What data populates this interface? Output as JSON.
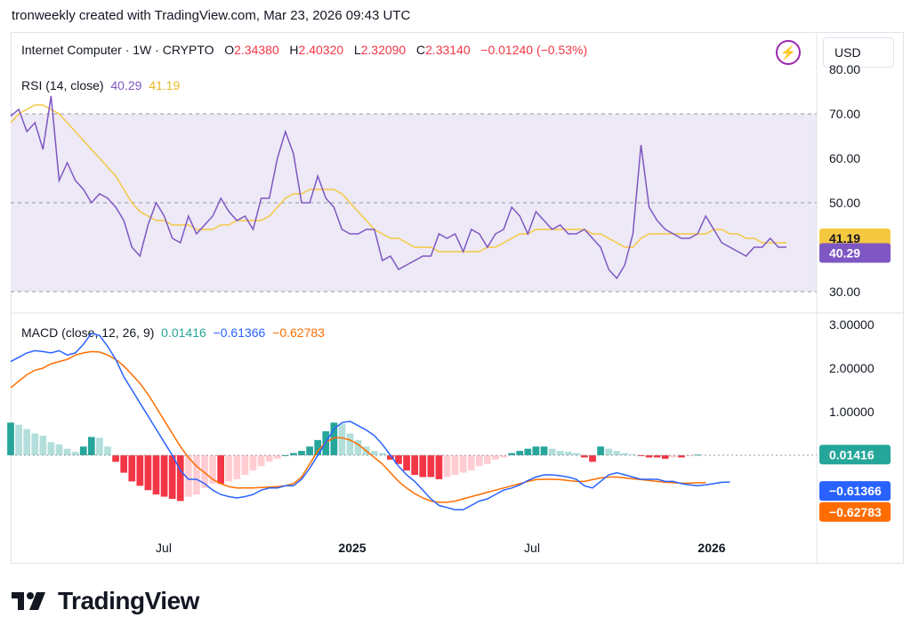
{
  "caption": "tronweekly created with TradingView.com, Mar 23, 2026 09:43 UTC",
  "header": {
    "symbol": "Internet Computer · 1W · CRYPTO",
    "o_label": "O",
    "o_value": "2.34380",
    "h_label": "H",
    "h_value": "2.40320",
    "l_label": "L",
    "l_value": "2.32090",
    "c_label": "C",
    "c_value": "2.33140",
    "change": "−0.01240 (−0.53%)",
    "currency": "USD"
  },
  "colors": {
    "rsi": "#7e57c2",
    "rsi_ma": "#f5c842",
    "macd": "#2962ff",
    "signal": "#ff6d00",
    "hist_pos": "#26a69a",
    "hist_pos_light": "#b2dfdb",
    "hist_neg": "#f23645",
    "hist_neg_light": "#ffcdd2",
    "macd_val": "#26a69a"
  },
  "icons": {
    "flash": "flash-icon",
    "logo": "tradingview-logo-icon"
  },
  "rsi_legend": {
    "label": "RSI (14, close)",
    "value": "40.29",
    "ma_value": "41.19"
  },
  "macd_legend": {
    "label": "MACD (close, 12, 26, 9)",
    "hist": "0.01416",
    "macd": "−0.61366",
    "signal": "−0.62783"
  },
  "footer": {
    "brand": "TradingView"
  },
  "chart_data": [
    {
      "type": "line",
      "title": "RSI (14, close)",
      "ylim": [
        30,
        80
      ],
      "y_ticks": [
        "30.00",
        "50.00",
        "60.00",
        "70.00",
        "80.00"
      ],
      "levels": [
        30,
        50,
        70
      ],
      "x_ticks": [
        "Jul",
        "2025",
        "Jul",
        "2026"
      ],
      "series": [
        {
          "name": "RSI",
          "values": [
            69.5,
            71,
            66,
            68,
            62,
            74,
            55,
            59,
            55,
            53,
            50,
            52,
            51,
            49,
            46,
            40,
            38,
            45,
            50,
            47,
            42,
            41,
            47,
            43,
            45,
            47,
            51,
            48,
            46,
            47,
            44,
            51,
            51,
            60,
            66,
            61,
            50,
            50,
            56,
            51,
            49,
            44,
            43,
            43,
            44,
            44,
            37,
            38,
            35,
            36,
            37,
            38,
            38,
            43,
            42,
            43,
            39,
            44,
            43,
            40,
            43,
            44,
            49,
            47,
            43,
            48,
            46,
            44,
            45,
            43,
            43,
            44,
            42,
            40,
            35,
            33,
            36,
            43,
            63,
            49,
            46,
            44,
            43,
            42,
            42,
            43,
            47,
            44,
            41,
            40,
            39,
            38,
            40,
            40,
            42,
            40,
            40
          ],
          "last_label": "40.29"
        },
        {
          "name": "RSI-based MA",
          "values": [
            68,
            70,
            71,
            72,
            72,
            71,
            70,
            68,
            66,
            64,
            62,
            60,
            58,
            56,
            53,
            50,
            48,
            47,
            46,
            46,
            45,
            45,
            45,
            44,
            44,
            44,
            45,
            45,
            46,
            46,
            46,
            46,
            47,
            49,
            51,
            52,
            52,
            53,
            53,
            53,
            53,
            52,
            50,
            48,
            46,
            44,
            43,
            42,
            42,
            41,
            40,
            40,
            40,
            39,
            39,
            39,
            39,
            39,
            39,
            40,
            40,
            41,
            42,
            43,
            43,
            44,
            44,
            44,
            44,
            44,
            44,
            44,
            43,
            43,
            42,
            41,
            40,
            40,
            42,
            43,
            43,
            43,
            43,
            43,
            43,
            43,
            43,
            44,
            44,
            43,
            43,
            42,
            42,
            41,
            41,
            41,
            41
          ],
          "last_label": "41.19"
        }
      ]
    },
    {
      "type": "line",
      "title": "MACD (close, 12, 26, 9)",
      "ylim": [
        -1.8,
        3.0
      ],
      "y_ticks": [
        "1.00000",
        "2.00000",
        "3.00000"
      ],
      "x_ticks": [
        "Jul",
        "2025",
        "Jul",
        "2026"
      ],
      "series": [
        {
          "name": "MACD",
          "values": [
            2.15,
            2.25,
            2.35,
            2.4,
            2.38,
            2.35,
            2.4,
            2.3,
            2.35,
            2.55,
            2.8,
            2.75,
            2.5,
            2.2,
            1.8,
            1.5,
            1.2,
            0.9,
            0.6,
            0.3,
            0.0,
            -0.35,
            -0.55,
            -0.55,
            -0.65,
            -0.8,
            -0.9,
            -0.95,
            -0.98,
            -0.95,
            -0.9,
            -0.8,
            -0.75,
            -0.75,
            -0.7,
            -0.7,
            -0.55,
            -0.3,
            0.0,
            0.3,
            0.6,
            0.75,
            0.78,
            0.68,
            0.58,
            0.45,
            0.25,
            0.0,
            -0.25,
            -0.45,
            -0.6,
            -0.8,
            -1.0,
            -1.15,
            -1.2,
            -1.25,
            -1.25,
            -1.15,
            -1.05,
            -1.0,
            -0.9,
            -0.8,
            -0.75,
            -0.68,
            -0.58,
            -0.5,
            -0.45,
            -0.45,
            -0.47,
            -0.5,
            -0.55,
            -0.7,
            -0.75,
            -0.6,
            -0.45,
            -0.4,
            -0.45,
            -0.5,
            -0.55,
            -0.55,
            -0.55,
            -0.6,
            -0.6,
            -0.65,
            -0.68,
            -0.7,
            -0.68,
            -0.65,
            -0.62,
            -0.61366
          ],
          "last_label": "−0.61366"
        },
        {
          "name": "Signal",
          "values": [
            1.55,
            1.7,
            1.85,
            1.95,
            2.0,
            2.1,
            2.15,
            2.2,
            2.3,
            2.35,
            2.38,
            2.37,
            2.3,
            2.2,
            2.05,
            1.85,
            1.65,
            1.4,
            1.1,
            0.8,
            0.5,
            0.2,
            -0.05,
            -0.25,
            -0.4,
            -0.55,
            -0.65,
            -0.72,
            -0.75,
            -0.75,
            -0.75,
            -0.74,
            -0.73,
            -0.72,
            -0.7,
            -0.65,
            -0.5,
            -0.2,
            0.1,
            0.3,
            0.4,
            0.4,
            0.35,
            0.25,
            0.1,
            -0.05,
            -0.2,
            -0.4,
            -0.6,
            -0.75,
            -0.88,
            -0.98,
            -1.05,
            -1.08,
            -1.08,
            -1.05,
            -1.0,
            -0.95,
            -0.9,
            -0.85,
            -0.8,
            -0.75,
            -0.7,
            -0.65,
            -0.6,
            -0.56,
            -0.55,
            -0.55,
            -0.56,
            -0.58,
            -0.6,
            -0.6,
            -0.56,
            -0.52,
            -0.5,
            -0.5,
            -0.52,
            -0.54,
            -0.56,
            -0.58,
            -0.6,
            -0.62,
            -0.63,
            -0.64,
            -0.64,
            -0.63,
            -0.62783
          ],
          "last_label": "−0.62783"
        },
        {
          "name": "Histogram",
          "values": [
            0.75,
            0.7,
            0.6,
            0.5,
            0.45,
            0.3,
            0.25,
            0.15,
            0.08,
            0.2,
            0.42,
            0.4,
            0.2,
            -0.15,
            -0.4,
            -0.6,
            -0.7,
            -0.8,
            -0.9,
            -0.95,
            -1.0,
            -1.05,
            -0.95,
            -0.9,
            -0.75,
            -0.65,
            -0.65,
            -0.6,
            -0.55,
            -0.45,
            -0.35,
            -0.25,
            -0.15,
            -0.08,
            0.0,
            0.05,
            0.1,
            0.2,
            0.35,
            0.55,
            0.75,
            0.72,
            0.5,
            0.35,
            0.2,
            0.1,
            0.05,
            -0.1,
            -0.2,
            -0.35,
            -0.45,
            -0.5,
            -0.5,
            -0.55,
            -0.5,
            -0.45,
            -0.4,
            -0.35,
            -0.25,
            -0.2,
            -0.1,
            -0.05,
            0.05,
            0.1,
            0.15,
            0.2,
            0.2,
            0.15,
            0.1,
            0.08,
            0.05,
            -0.05,
            -0.15,
            0.2,
            0.15,
            0.1,
            0.05,
            0.02,
            -0.02,
            -0.05,
            -0.05,
            -0.08,
            -0.05,
            -0.05,
            -0.02,
            0.01416
          ],
          "last_label": "0.01416"
        }
      ]
    }
  ]
}
